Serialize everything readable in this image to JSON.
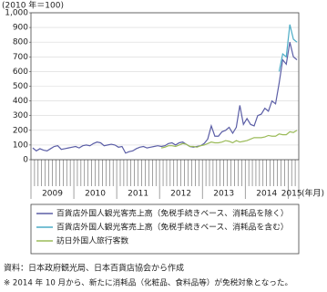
{
  "chart_data": {
    "type": "line",
    "y_label": "(2010 年＝100)",
    "x_label": "(年月)",
    "categories": [
      null,
      null,
      null,
      null,
      null,
      "2009",
      null,
      null,
      null,
      null,
      null,
      null,
      null,
      null,
      null,
      null,
      null,
      "2010",
      null,
      null,
      null,
      null,
      null,
      null,
      null,
      null,
      null,
      null,
      null,
      "2011",
      null,
      null,
      null,
      null,
      null,
      null,
      null,
      null,
      null,
      null,
      null,
      "2012",
      null,
      null,
      null,
      null,
      null,
      null,
      null,
      null,
      null,
      null,
      null,
      "2013",
      null,
      null,
      null,
      null,
      null,
      null,
      null,
      null,
      null,
      null,
      null,
      "2014",
      null,
      null,
      null,
      null,
      null,
      null,
      "2015",
      null,
      null
    ],
    "series": [
      {
        "name": "百貨店外国人観光客売上高（免税手続きベース、消耗品を除く）",
        "color": "#5b5ea6",
        "values": [
          80,
          60,
          75,
          65,
          60,
          75,
          90,
          95,
          70,
          75,
          80,
          85,
          90,
          80,
          95,
          100,
          95,
          110,
          120,
          115,
          95,
          100,
          105,
          100,
          85,
          90,
          45,
          55,
          60,
          75,
          85,
          90,
          80,
          85,
          90,
          95,
          90,
          95,
          110,
          115,
          100,
          115,
          120,
          105,
          90,
          85,
          90,
          95,
          110,
          140,
          230,
          160,
          160,
          190,
          200,
          220,
          180,
          220,
          370,
          240,
          280,
          240,
          230,
          300,
          310,
          350,
          330,
          400,
          380,
          520,
          680,
          650,
          800,
          700,
          680
        ]
      },
      {
        "name": "百貨店外国人観光客売上高（免税手続きベース、消耗品を含む）",
        "color": "#4bacc6",
        "values": [
          null,
          null,
          null,
          null,
          null,
          null,
          null,
          null,
          null,
          null,
          null,
          null,
          null,
          null,
          null,
          null,
          null,
          null,
          null,
          null,
          null,
          null,
          null,
          null,
          null,
          null,
          null,
          null,
          null,
          null,
          null,
          null,
          null,
          null,
          null,
          null,
          null,
          null,
          null,
          null,
          null,
          null,
          null,
          null,
          null,
          null,
          null,
          null,
          null,
          null,
          null,
          null,
          null,
          null,
          null,
          null,
          null,
          null,
          null,
          null,
          null,
          null,
          null,
          null,
          null,
          null,
          null,
          null,
          null,
          600,
          720,
          700,
          920,
          820,
          800
        ]
      },
      {
        "name": "訪日外国人旅行客数",
        "color": "#9bbb59",
        "values": [
          null,
          null,
          null,
          null,
          null,
          null,
          null,
          null,
          null,
          null,
          null,
          null,
          null,
          null,
          null,
          null,
          null,
          null,
          null,
          null,
          null,
          null,
          null,
          null,
          null,
          null,
          null,
          null,
          null,
          null,
          null,
          null,
          null,
          null,
          null,
          null,
          80,
          85,
          95,
          95,
          90,
          100,
          110,
          105,
          90,
          90,
          85,
          95,
          100,
          110,
          120,
          115,
          115,
          120,
          130,
          125,
          115,
          130,
          120,
          125,
          130,
          140,
          150,
          150,
          150,
          155,
          165,
          160,
          160,
          175,
          170,
          170,
          190,
          185,
          200
        ]
      }
    ],
    "ylim": [
      0,
      1000
    ],
    "yticks": [
      0,
      100,
      200,
      300,
      400,
      500,
      600,
      700,
      800,
      900,
      {
        "value": 1000,
        "label": "1,000"
      }
    ],
    "grid": true,
    "notes": [
      "資料：日本政府観光局、日本百貨店協会から作成",
      "※ 2014 年 10 月から、新たに消耗品（化粧品、食料品等）が免税対象となった。"
    ]
  }
}
